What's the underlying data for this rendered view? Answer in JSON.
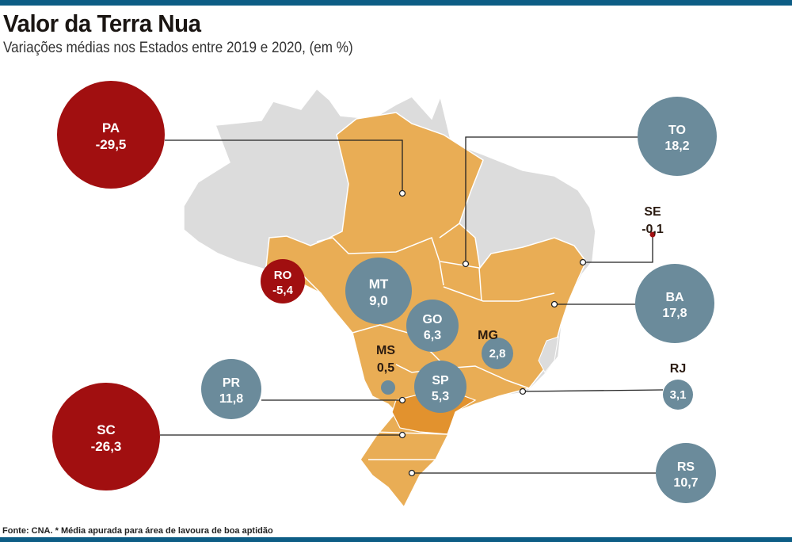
{
  "title": "Valor da Terra Nua",
  "subtitle": "Variações médias nos Estados entre 2019 e 2020, (em %)",
  "footer": "Fonte: CNA. * Média apurada para área de lavoura de boa aptidão",
  "colors": {
    "negative": "#a10f10",
    "positive": "#6b8b9b",
    "highlight_states": "#e9ad55",
    "other_states": "#dcdcdc",
    "bar": "#0d5d85"
  },
  "states": [
    {
      "code": "PA",
      "value": "-29,5"
    },
    {
      "code": "TO",
      "value": "18,2"
    },
    {
      "code": "SE",
      "value": "-0,1"
    },
    {
      "code": "BA",
      "value": "17,8"
    },
    {
      "code": "RO",
      "value": "-5,4"
    },
    {
      "code": "MT",
      "value": "9,0"
    },
    {
      "code": "GO",
      "value": "6,3"
    },
    {
      "code": "MG",
      "value": "2,8"
    },
    {
      "code": "MS",
      "value": "0,5"
    },
    {
      "code": "SP",
      "value": "5,3"
    },
    {
      "code": "PR",
      "value": "11,8"
    },
    {
      "code": "RJ",
      "value": "3,1"
    },
    {
      "code": "SC",
      "value": "-26,3"
    },
    {
      "code": "RS",
      "value": "10,7"
    }
  ]
}
